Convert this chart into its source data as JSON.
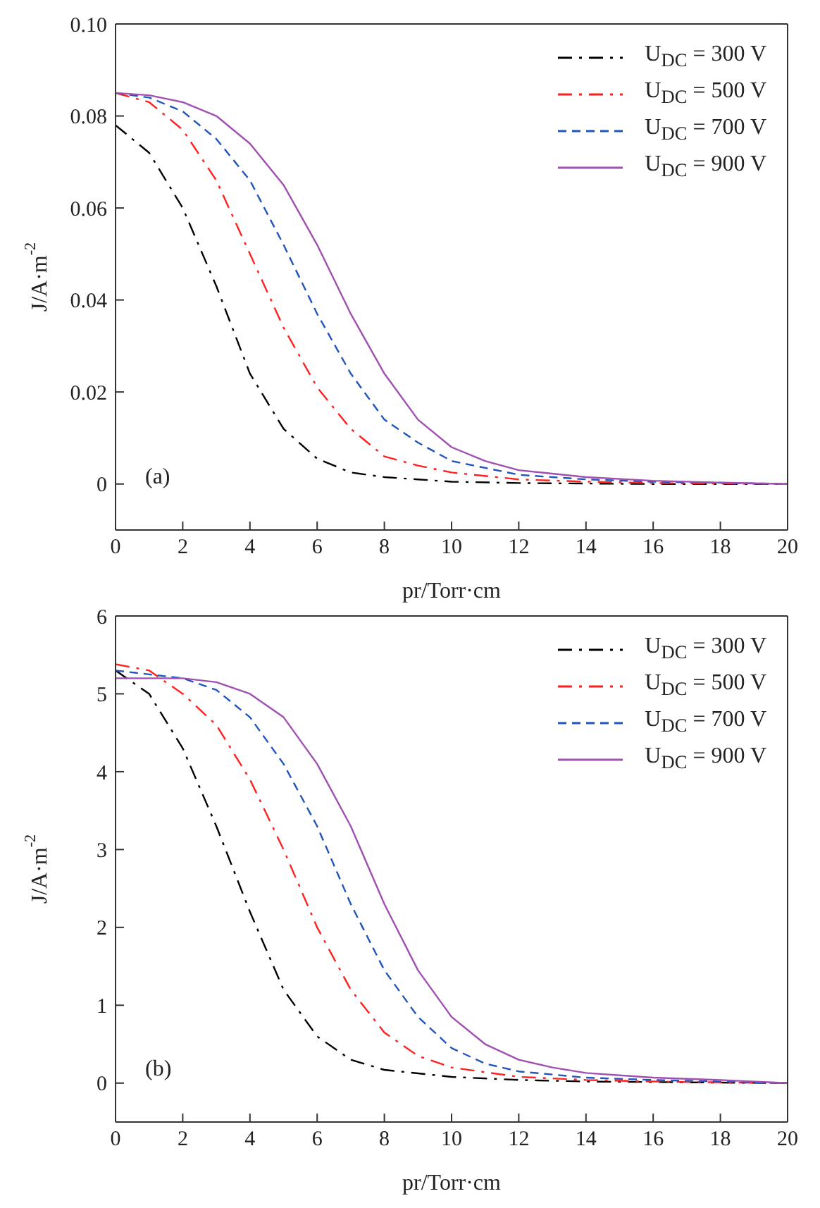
{
  "chart_data": [
    {
      "type": "line",
      "xlabel": "pr/Torr·cm",
      "ylabel": "J/A·m$^{-2}$",
      "annotations": [
        "(a)"
      ],
      "legend": "top right",
      "marker": "none",
      "xlim": [
        0,
        20
      ],
      "xticks": [
        0,
        2,
        4,
        6,
        8,
        10,
        12,
        14,
        16,
        18,
        20
      ],
      "ylim": [
        -0.01,
        0.1
      ],
      "yticks": [
        0,
        0.02,
        0.04,
        0.06,
        0.08,
        {
          "value": 0.1,
          "label": "0.10"
        }
      ],
      "series": [
        {
          "name": "U$_{DC}$ = 300 V",
          "color": "#000000",
          "line_style": "dashdot",
          "x": [
            0,
            1,
            2,
            3,
            4,
            5,
            6,
            7,
            8,
            9,
            10,
            12,
            14,
            16,
            20
          ],
          "values": [
            0.078,
            0.072,
            0.06,
            0.043,
            0.024,
            0.012,
            0.0055,
            0.0025,
            0.0015,
            0.001,
            0.0005,
            0.0002,
            0.0001,
            0,
            0
          ]
        },
        {
          "name": "U$_{DC}$ = 500 V",
          "color": "#ff2020",
          "line_style": "dashdot",
          "x": [
            0,
            1,
            2,
            3,
            4,
            5,
            6,
            7,
            8,
            9,
            10,
            12,
            14,
            16,
            20
          ],
          "values": [
            0.085,
            0.083,
            0.077,
            0.066,
            0.05,
            0.034,
            0.021,
            0.012,
            0.006,
            0.004,
            0.0025,
            0.001,
            0.0005,
            0.0002,
            0
          ]
        },
        {
          "name": "U$_{DC}$ = 700 V",
          "color": "#2255bb",
          "line_style": "dashed",
          "x": [
            0,
            1,
            2,
            3,
            4,
            5,
            6,
            7,
            8,
            9,
            10,
            12,
            14,
            16,
            20
          ],
          "values": [
            0.085,
            0.084,
            0.081,
            0.075,
            0.066,
            0.052,
            0.037,
            0.024,
            0.014,
            0.009,
            0.005,
            0.002,
            0.001,
            0.0005,
            0
          ]
        },
        {
          "name": "U$_{DC}$ = 900 V",
          "color": "#a050b0",
          "line_style": "solid",
          "x": [
            0,
            1,
            2,
            3,
            4,
            5,
            6,
            7,
            8,
            9,
            10,
            11,
            12,
            14,
            16,
            18,
            20
          ],
          "values": [
            0.085,
            0.0845,
            0.083,
            0.08,
            0.074,
            0.065,
            0.052,
            0.037,
            0.024,
            0.014,
            0.008,
            0.005,
            0.003,
            0.0015,
            0.0007,
            0.0003,
            0
          ]
        }
      ]
    },
    {
      "type": "line",
      "xlabel": "pr/Torr·cm",
      "ylabel": "J/A·m$^{-2}$",
      "annotations": [
        "(b)"
      ],
      "legend": "top right",
      "marker": "none",
      "xlim": [
        0,
        20
      ],
      "xticks": [
        0,
        2,
        4,
        6,
        8,
        10,
        12,
        14,
        16,
        18,
        20
      ],
      "ylim": [
        -0.5,
        6
      ],
      "yticks": [
        0,
        1,
        2,
        3,
        4,
        5,
        6
      ],
      "series": [
        {
          "name": "U$_{DC}$ = 300 V",
          "color": "#000000",
          "line_style": "dashdot",
          "x": [
            0,
            1,
            2,
            3,
            4,
            5,
            6,
            7,
            8,
            10,
            12,
            14,
            20
          ],
          "values": [
            5.3,
            5.0,
            4.3,
            3.3,
            2.2,
            1.2,
            0.6,
            0.3,
            0.17,
            0.08,
            0.04,
            0.02,
            0
          ]
        },
        {
          "name": "U$_{DC}$ = 500 V",
          "color": "#ff2020",
          "line_style": "dashdot",
          "x": [
            0,
            1,
            2,
            3,
            4,
            5,
            6,
            7,
            8,
            9,
            10,
            12,
            14,
            16,
            20
          ],
          "values": [
            5.38,
            5.3,
            5.0,
            4.6,
            3.9,
            3.0,
            2.0,
            1.2,
            0.65,
            0.35,
            0.2,
            0.08,
            0.04,
            0.02,
            0
          ]
        },
        {
          "name": "U$_{DC}$ = 700 V",
          "color": "#2255bb",
          "line_style": "dashed",
          "x": [
            0,
            1,
            2,
            3,
            4,
            5,
            6,
            7,
            8,
            9,
            10,
            11,
            12,
            14,
            16,
            20
          ],
          "values": [
            5.3,
            5.25,
            5.2,
            5.05,
            4.7,
            4.1,
            3.3,
            2.3,
            1.45,
            0.85,
            0.45,
            0.25,
            0.15,
            0.07,
            0.04,
            0
          ]
        },
        {
          "name": "U$_{DC}$ = 900 V",
          "color": "#a050b0",
          "line_style": "solid",
          "x": [
            0,
            2,
            3,
            4,
            5,
            6,
            7,
            8,
            9,
            10,
            11,
            12,
            13,
            14,
            16,
            18,
            20
          ],
          "values": [
            5.2,
            5.2,
            5.15,
            5.0,
            4.7,
            4.1,
            3.3,
            2.3,
            1.45,
            0.85,
            0.5,
            0.3,
            0.2,
            0.13,
            0.07,
            0.04,
            0
          ]
        }
      ]
    }
  ]
}
